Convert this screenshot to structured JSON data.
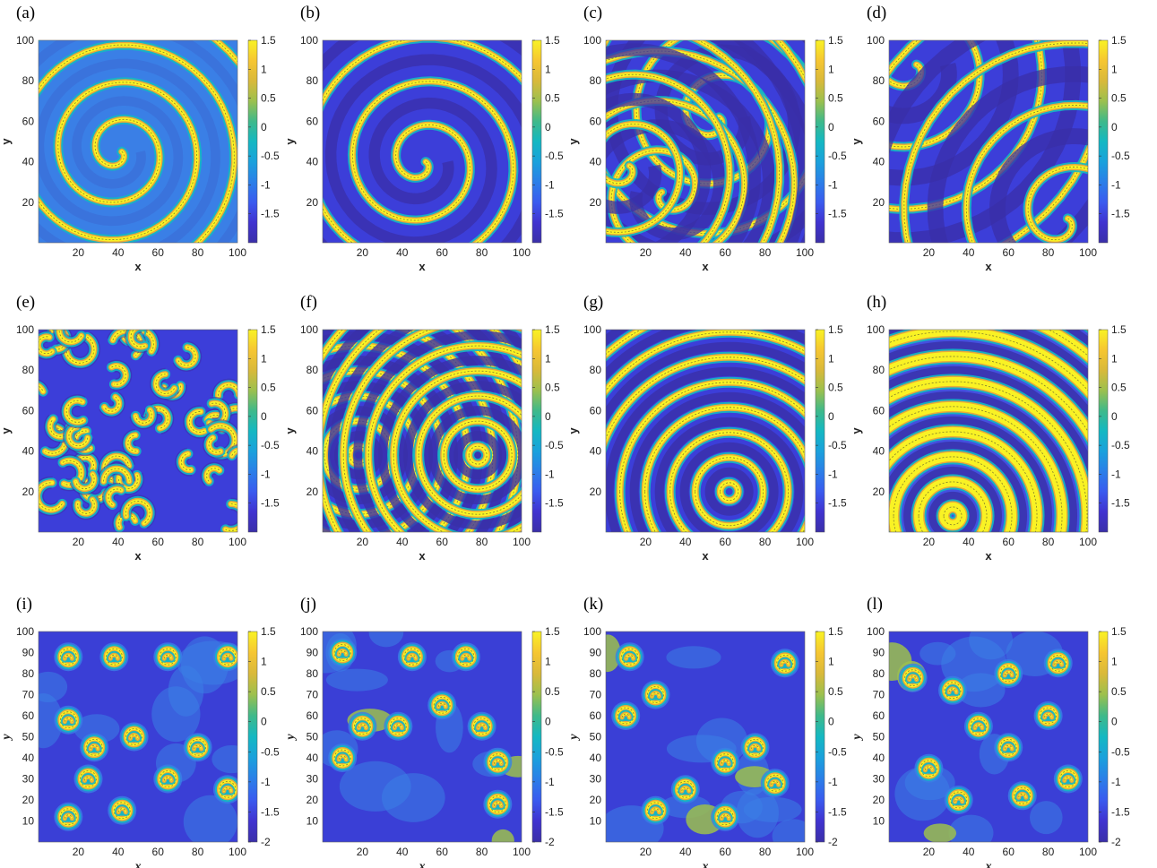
{
  "chart_data": [
    {
      "type": "heatmap",
      "panel_label": "(a)",
      "xlabel": "x",
      "ylabel": "y",
      "xlim": [
        0,
        100
      ],
      "ylim": [
        0,
        100
      ],
      "xticks": [
        "20",
        "40",
        "60",
        "80",
        "100"
      ],
      "yticks": [
        "20",
        "40",
        "60",
        "80",
        "100"
      ],
      "colorbar": {
        "range": [
          -2,
          1.5
        ],
        "ticks": [
          "1.5",
          "1",
          "0.5",
          "0",
          "-0.5",
          "-1",
          "-1.5"
        ]
      },
      "pattern": "spiral",
      "background": "#3a7fe6",
      "centers": [
        {
          "x": 40,
          "y": 45,
          "w": 3,
          "turns": 3
        }
      ]
    },
    {
      "type": "heatmap",
      "panel_label": "(b)",
      "xlabel": "x",
      "ylabel": "y",
      "xlim": [
        0,
        100
      ],
      "ylim": [
        0,
        100
      ],
      "xticks": [
        "20",
        "40",
        "60",
        "80",
        "100"
      ],
      "yticks": [
        "20",
        "40",
        "60",
        "80",
        "100"
      ],
      "colorbar": {
        "range": [
          -2,
          1.5
        ],
        "ticks": [
          "1.5",
          "1",
          "0.5",
          "0",
          "-0.5",
          "-1",
          "-1.5"
        ]
      },
      "pattern": "spiral",
      "background": "#3c3ed9",
      "centers": [
        {
          "x": 50,
          "y": 40,
          "w": 3.5,
          "turns": 1
        }
      ]
    },
    {
      "type": "heatmap",
      "panel_label": "(c)",
      "xlabel": "x",
      "ylabel": "y",
      "xlim": [
        0,
        100
      ],
      "ylim": [
        0,
        100
      ],
      "xticks": [
        "20",
        "40",
        "60",
        "80",
        "100"
      ],
      "yticks": [
        "20",
        "40",
        "60",
        "80",
        "100"
      ],
      "colorbar": {
        "range": [
          -2,
          1.5
        ],
        "ticks": [
          "1.5",
          "1",
          "0.5",
          "0",
          "-0.5",
          "-1",
          "-1.5"
        ]
      },
      "pattern": "spiral",
      "background": "#3c3ed9",
      "centers": [
        {
          "x": 55,
          "y": 62,
          "w": 4,
          "turns": 1
        },
        {
          "x": 30,
          "y": 25,
          "w": 4,
          "turns": -1
        },
        {
          "x": 10,
          "y": 38,
          "w": 4,
          "turns": 1
        }
      ]
    },
    {
      "type": "heatmap",
      "panel_label": "(d)",
      "xlabel": "x",
      "ylabel": "y",
      "xlim": [
        0,
        100
      ],
      "ylim": [
        0,
        100
      ],
      "xticks": [
        "20",
        "40",
        "60",
        "80",
        "100"
      ],
      "yticks": [
        "20",
        "40",
        "60",
        "80",
        "100"
      ],
      "colorbar": {
        "range": [
          -2,
          1.5
        ],
        "ticks": [
          "1.5",
          "1",
          "0.5",
          "0",
          "-0.5",
          "-1",
          "-1.5"
        ]
      },
      "pattern": "spiral",
      "background": "#3c3ed9",
      "centers": [
        {
          "x": 12,
          "y": 88,
          "w": 5,
          "turns": 1
        },
        {
          "x": 88,
          "y": 12,
          "w": 5,
          "turns": 1
        }
      ]
    },
    {
      "type": "heatmap",
      "panel_label": "(e)",
      "xlabel": "x",
      "ylabel": "y",
      "xlim": [
        0,
        100
      ],
      "ylim": [
        0,
        100
      ],
      "xticks": [
        "20",
        "40",
        "60",
        "80",
        "100"
      ],
      "yticks": [
        "20",
        "40",
        "60",
        "80",
        "100"
      ],
      "colorbar": {
        "range": [
          -2,
          1.5
        ],
        "ticks": [
          "1.5",
          "1",
          "0.5",
          "0",
          "-0.5",
          "-1",
          "-1.5"
        ]
      },
      "pattern": "labyrinth",
      "background": "#3c3ed9"
    },
    {
      "type": "heatmap",
      "panel_label": "(f)",
      "xlabel": "x",
      "ylabel": "y",
      "xlim": [
        0,
        100
      ],
      "ylim": [
        0,
        100
      ],
      "xticks": [
        "20",
        "40",
        "60",
        "80",
        "100"
      ],
      "yticks": [
        "20",
        "40",
        "60",
        "80",
        "100"
      ],
      "colorbar": {
        "range": [
          -2,
          1.5
        ],
        "ticks": [
          "1.5",
          "1",
          "0.5",
          "0",
          "-0.5",
          "-1",
          "-1.5"
        ]
      },
      "pattern": "target",
      "background": "#3c3ed9",
      "centers": [
        {
          "x": 18,
          "y": 38
        },
        {
          "x": 78,
          "y": 38
        }
      ]
    },
    {
      "type": "heatmap",
      "panel_label": "(g)",
      "xlabel": "x",
      "ylabel": "y",
      "xlim": [
        0,
        100
      ],
      "ylim": [
        0,
        100
      ],
      "xticks": [
        "20",
        "40",
        "60",
        "80",
        "100"
      ],
      "yticks": [
        "20",
        "40",
        "60",
        "80",
        "100"
      ],
      "colorbar": {
        "range": [
          -2,
          1.5
        ],
        "ticks": [
          "1.5",
          "1",
          "0.5",
          "0",
          "-0.5",
          "-1",
          "-1.5"
        ]
      },
      "pattern": "target",
      "background": "#3c3ed9",
      "centers": [
        {
          "x": 62,
          "y": 20
        }
      ]
    },
    {
      "type": "heatmap",
      "panel_label": "(h)",
      "xlabel": "x",
      "ylabel": "y",
      "xlim": [
        0,
        100
      ],
      "ylim": [
        0,
        100
      ],
      "xticks": [
        "20",
        "40",
        "60",
        "80",
        "100"
      ],
      "yticks": [
        "20",
        "40",
        "60",
        "80",
        "100"
      ],
      "colorbar": {
        "range": [
          -2,
          1.5
        ],
        "ticks": [
          "1.5",
          "1",
          "0.5",
          "0",
          "-0.5",
          "-1",
          "-1.5"
        ]
      },
      "pattern": "target",
      "background": "#4450e0",
      "centers": [
        {
          "x": 32,
          "y": 8
        }
      ]
    },
    {
      "type": "heatmap",
      "panel_label": "(i)",
      "xlabel": "x",
      "ylabel": "y",
      "xlim": [
        0,
        100
      ],
      "ylim": [
        0,
        100
      ],
      "xticks": [
        "20",
        "40",
        "60",
        "80",
        "100"
      ],
      "yticks": [
        "10",
        "20",
        "30",
        "40",
        "50",
        "60",
        "70",
        "80",
        "90",
        "100"
      ],
      "colorbar": {
        "range": [
          -2,
          1.5
        ],
        "ticks": [
          "1.5",
          "1",
          "0.5",
          "0",
          "-0.5",
          "-1",
          "-1.5",
          "-2"
        ]
      },
      "pattern": "rings",
      "background": "#3a3fd6",
      "centers": [
        {
          "x": 15,
          "y": 88
        },
        {
          "x": 38,
          "y": 88
        },
        {
          "x": 65,
          "y": 88
        },
        {
          "x": 95,
          "y": 88
        },
        {
          "x": 15,
          "y": 58
        },
        {
          "x": 28,
          "y": 45
        },
        {
          "x": 48,
          "y": 50
        },
        {
          "x": 80,
          "y": 45
        },
        {
          "x": 25,
          "y": 30
        },
        {
          "x": 65,
          "y": 30
        },
        {
          "x": 42,
          "y": 15
        },
        {
          "x": 15,
          "y": 12
        },
        {
          "x": 95,
          "y": 25
        }
      ]
    },
    {
      "type": "heatmap",
      "panel_label": "(j)",
      "xlabel": "x",
      "ylabel": "y",
      "xlim": [
        0,
        100
      ],
      "ylim": [
        0,
        100
      ],
      "xticks": [
        "20",
        "40",
        "60",
        "80",
        "100"
      ],
      "yticks": [
        "10",
        "20",
        "30",
        "40",
        "50",
        "60",
        "70",
        "80",
        "90",
        "100"
      ],
      "colorbar": {
        "range": [
          -2,
          1.5
        ],
        "ticks": [
          "1.5",
          "1",
          "0.5",
          "0",
          "-0.5",
          "-1",
          "-1.5",
          "-2"
        ]
      },
      "pattern": "rings",
      "background": "#3a3fd6",
      "centers": [
        {
          "x": 10,
          "y": 90
        },
        {
          "x": 45,
          "y": 88
        },
        {
          "x": 72,
          "y": 88
        },
        {
          "x": 20,
          "y": 55
        },
        {
          "x": 38,
          "y": 55
        },
        {
          "x": 60,
          "y": 65
        },
        {
          "x": 80,
          "y": 55
        },
        {
          "x": 88,
          "y": 38
        },
        {
          "x": 88,
          "y": 18
        },
        {
          "x": 10,
          "y": 40
        }
      ]
    },
    {
      "type": "heatmap",
      "panel_label": "(k)",
      "xlabel": "x",
      "ylabel": "y",
      "xlim": [
        0,
        100
      ],
      "ylim": [
        0,
        100
      ],
      "xticks": [
        "20",
        "40",
        "60",
        "80",
        "100"
      ],
      "yticks": [
        "10",
        "20",
        "30",
        "40",
        "50",
        "60",
        "70",
        "80",
        "90",
        "100"
      ],
      "colorbar": {
        "range": [
          -2,
          1.5
        ],
        "ticks": [
          "1.5",
          "1",
          "0.5",
          "0",
          "-0.5",
          "-1",
          "-1.5",
          "-2"
        ]
      },
      "pattern": "rings",
      "background": "#3a3fd6",
      "centers": [
        {
          "x": 12,
          "y": 88
        },
        {
          "x": 10,
          "y": 60
        },
        {
          "x": 25,
          "y": 70
        },
        {
          "x": 40,
          "y": 25
        },
        {
          "x": 60,
          "y": 38
        },
        {
          "x": 75,
          "y": 45
        },
        {
          "x": 90,
          "y": 85
        },
        {
          "x": 85,
          "y": 28
        },
        {
          "x": 25,
          "y": 15
        },
        {
          "x": 60,
          "y": 12
        }
      ]
    },
    {
      "type": "heatmap",
      "panel_label": "(l)",
      "xlabel": "x",
      "ylabel": "y",
      "xlim": [
        0,
        100
      ],
      "ylim": [
        0,
        100
      ],
      "xticks": [
        "20",
        "40",
        "60",
        "80",
        "100"
      ],
      "yticks": [
        "10",
        "20",
        "30",
        "40",
        "50",
        "60",
        "70",
        "80",
        "90",
        "100"
      ],
      "colorbar": {
        "range": [
          -2,
          1.5
        ],
        "ticks": [
          "1.5",
          "1",
          "0.5",
          "0",
          "-0.5",
          "-1",
          "-1.5",
          "-2"
        ]
      },
      "pattern": "rings",
      "background": "#3a3fd6",
      "centers": [
        {
          "x": 12,
          "y": 78
        },
        {
          "x": 32,
          "y": 72
        },
        {
          "x": 60,
          "y": 80
        },
        {
          "x": 85,
          "y": 85
        },
        {
          "x": 45,
          "y": 55
        },
        {
          "x": 60,
          "y": 45
        },
        {
          "x": 80,
          "y": 60
        },
        {
          "x": 20,
          "y": 35
        },
        {
          "x": 35,
          "y": 20
        },
        {
          "x": 67,
          "y": 22
        },
        {
          "x": 90,
          "y": 30
        }
      ]
    }
  ],
  "palette": {
    "dark": "#3a2fa8",
    "blue": "#3c3ed9",
    "light": "#3a7fe6",
    "cyan": "#14b8c2",
    "green": "#3fb98a",
    "orange": "#e8a93a",
    "yellow": "#f9f224"
  },
  "colorbar_gradient": [
    "#f9f224",
    "#f6c632",
    "#d9b93a",
    "#9cc04e",
    "#3fb98a",
    "#14b8c2",
    "#1aa1dc",
    "#2b7fe8",
    "#3a5bef",
    "#4033d0",
    "#3a2fa8"
  ]
}
